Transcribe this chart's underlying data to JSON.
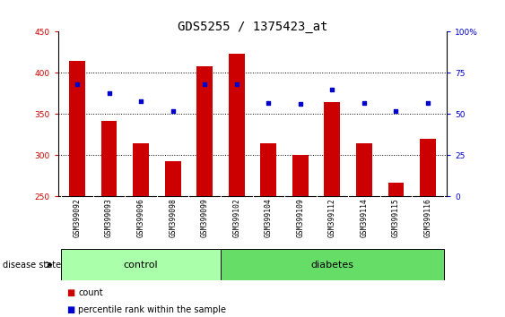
{
  "title": "GDS5255 / 1375423_at",
  "samples": [
    "GSM399092",
    "GSM399093",
    "GSM399096",
    "GSM399098",
    "GSM399099",
    "GSM399102",
    "GSM399104",
    "GSM399109",
    "GSM399112",
    "GSM399114",
    "GSM399115",
    "GSM399116"
  ],
  "counts": [
    415,
    342,
    315,
    293,
    408,
    423,
    315,
    300,
    365,
    315,
    267,
    320
  ],
  "percentiles": [
    68,
    63,
    58,
    52,
    68,
    68,
    57,
    56,
    65,
    57,
    52,
    57
  ],
  "bar_color": "#cc0000",
  "dot_color": "#0000cc",
  "ylim_left": [
    250,
    450
  ],
  "ylim_right": [
    0,
    100
  ],
  "yticks_left": [
    250,
    300,
    350,
    400,
    450
  ],
  "yticks_right": [
    0,
    25,
    50,
    75,
    100
  ],
  "ytick_labels_right": [
    "0",
    "25",
    "50",
    "75",
    "100%"
  ],
  "groups": [
    {
      "label": "control",
      "start": 0,
      "end": 4,
      "color": "#aaffaa"
    },
    {
      "label": "diabetes",
      "start": 5,
      "end": 11,
      "color": "#66dd66"
    }
  ],
  "disease_state_label": "disease state",
  "legend_count_label": "count",
  "legend_pct_label": "percentile rank within the sample",
  "bar_width": 0.5,
  "bg_color": "#d0d0d0",
  "plot_bg": "#ffffff",
  "title_fontsize": 10,
  "tick_fontsize": 6.5,
  "label_fontsize": 8,
  "sample_fontsize": 5.8
}
